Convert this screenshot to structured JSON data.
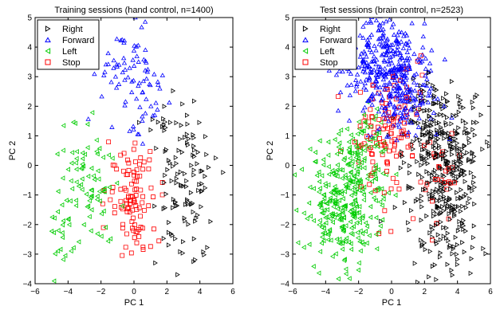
{
  "chart_data": [
    {
      "type": "scatter",
      "title": "Training sessions (hand control, n=1400)",
      "xlabel": "PC 1",
      "ylabel": "PC 2",
      "xlim": [
        -6,
        6
      ],
      "ylim": [
        -4,
        5
      ],
      "xticks": [
        "−6",
        "−4",
        "−2",
        "0",
        "2",
        "4",
        "6"
      ],
      "yticks": [
        "−4",
        "−3",
        "−2",
        "−1",
        "0",
        "1",
        "2",
        "3",
        "4",
        "5"
      ],
      "legend_position": "top-left",
      "series": [
        {
          "name": "Right",
          "marker": "triangle-right",
          "color": "#000000",
          "clusters": [
            {
              "cx": 3.2,
              "cy": -0.4,
              "sx": 0.95,
              "sy": 1.05,
              "n": 85
            },
            {
              "cx": 2.0,
              "cy": 1.3,
              "sx": 0.7,
              "sy": 0.6,
              "n": 20
            },
            {
              "cx": 3.4,
              "cy": -2.7,
              "sx": 0.8,
              "sy": 0.5,
              "n": 15
            }
          ]
        },
        {
          "name": "Forward",
          "marker": "triangle-up",
          "color": "#0000ff",
          "clusters": [
            {
              "cx": -0.3,
              "cy": 3.1,
              "sx": 0.95,
              "sy": 0.75,
              "n": 75
            },
            {
              "cx": 0.6,
              "cy": 1.9,
              "sx": 0.7,
              "sy": 0.4,
              "n": 10
            }
          ]
        },
        {
          "name": "Left",
          "marker": "triangle-left",
          "color": "#00cc00",
          "clusters": [
            {
              "cx": -2.9,
              "cy": -0.9,
              "sx": 1.0,
              "sy": 1.05,
              "n": 90
            },
            {
              "cx": -4.4,
              "cy": -2.4,
              "sx": 0.7,
              "sy": 0.6,
              "n": 12
            }
          ]
        },
        {
          "name": "Stop",
          "marker": "square",
          "color": "#ff0000",
          "clusters": [
            {
              "cx": 0.0,
              "cy": -1.1,
              "sx": 0.8,
              "sy": 0.75,
              "n": 80
            },
            {
              "cx": -0.7,
              "cy": 0.3,
              "sx": 0.6,
              "sy": 0.5,
              "n": 12
            },
            {
              "cx": 0.3,
              "cy": -2.5,
              "sx": 0.5,
              "sy": 0.4,
              "n": 8
            }
          ]
        }
      ]
    },
    {
      "type": "scatter",
      "title": "Test sessions (brain control, n=2523)",
      "xlabel": "PC 1",
      "ylabel": "PC 2",
      "xlim": [
        -6,
        6
      ],
      "ylim": [
        -4,
        5
      ],
      "xticks": [
        "−6",
        "−4",
        "−2",
        "0",
        "2",
        "4",
        "6"
      ],
      "yticks": [
        "−4",
        "−3",
        "−2",
        "−1",
        "0",
        "1",
        "2",
        "3",
        "4",
        "5"
      ],
      "legend_position": "top-left",
      "series": [
        {
          "name": "Right",
          "marker": "triangle-right",
          "color": "#000000",
          "clusters": [
            {
              "cx": 3.3,
              "cy": -0.2,
              "sx": 1.2,
              "sy": 1.3,
              "n": 330
            },
            {
              "cx": 2.2,
              "cy": 1.5,
              "sx": 0.9,
              "sy": 0.7,
              "n": 60
            },
            {
              "cx": 3.2,
              "cy": -2.7,
              "sx": 1.0,
              "sy": 0.6,
              "n": 40
            }
          ]
        },
        {
          "name": "Forward",
          "marker": "triangle-up",
          "color": "#0000ff",
          "clusters": [
            {
              "cx": -0.2,
              "cy": 3.3,
              "sx": 1.25,
              "sy": 0.85,
              "n": 360
            },
            {
              "cx": 0.7,
              "cy": 2.0,
              "sx": 1.0,
              "sy": 0.6,
              "n": 70
            }
          ]
        },
        {
          "name": "Left",
          "marker": "triangle-left",
          "color": "#00cc00",
          "clusters": [
            {
              "cx": -2.8,
              "cy": -1.3,
              "sx": 1.15,
              "sy": 1.1,
              "n": 300
            },
            {
              "cx": -1.7,
              "cy": 0.7,
              "sx": 0.9,
              "sy": 0.6,
              "n": 60
            }
          ]
        },
        {
          "name": "Stop",
          "marker": "square",
          "color": "#ff0000",
          "clusters": [
            {
              "cx": -0.6,
              "cy": 0.8,
              "sx": 1.0,
              "sy": 0.9,
              "n": 100
            },
            {
              "cx": 3.0,
              "cy": -0.5,
              "sx": 0.8,
              "sy": 0.8,
              "n": 30
            },
            {
              "cx": 0.8,
              "cy": 2.5,
              "sx": 0.8,
              "sy": 0.6,
              "n": 20
            }
          ]
        }
      ]
    }
  ]
}
